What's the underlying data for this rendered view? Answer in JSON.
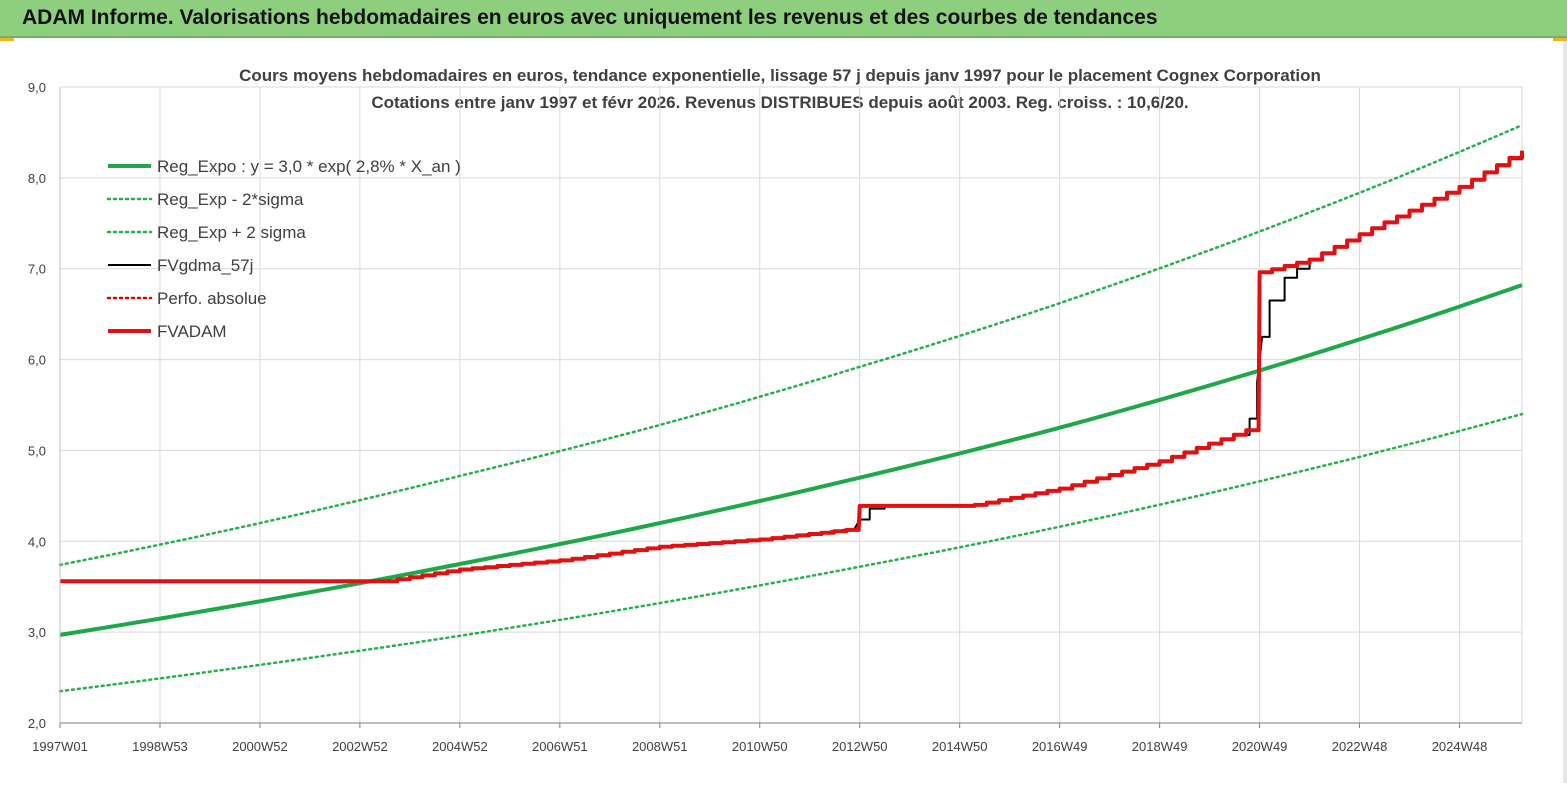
{
  "header": {
    "title": "ADAM Informe. Valorisations hebdomadaires en euros avec uniquement les revenus et des courbes de tendances"
  },
  "colors": {
    "header_bg": "#8dcf7f",
    "reg_expo": "#1fa84a",
    "reg_band": "#25b04c",
    "fvgdma": "#000000",
    "perfo": "#e00000",
    "fvadam": "#e21010",
    "grid": "#d9d9d9"
  },
  "chart_data": {
    "type": "line",
    "title": "Cours moyens hebdomadaires en euros, tendance exponentielle, lissage 57 j depuis janv 1997 pour le placement Cognex Corporation",
    "subtitle": "Cotations entre janv 1997 et févr 2026. Revenus DISTRIBUES depuis août 2003. Reg. croiss. : 10,6/20.",
    "xlabel": "",
    "ylabel": "",
    "ylim": [
      2.0,
      9.0
    ],
    "xlim": [
      1997.0,
      2026.25
    ],
    "y_ticks": [
      "2,0",
      "3,0",
      "4,0",
      "5,0",
      "6,0",
      "7,0",
      "8,0",
      "9,0"
    ],
    "x_ticks": [
      {
        "label": "1997W01",
        "x": 1997.0
      },
      {
        "label": "1998W53",
        "x": 1999.0
      },
      {
        "label": "2000W52",
        "x": 2001.0
      },
      {
        "label": "2002W52",
        "x": 2003.0
      },
      {
        "label": "2004W52",
        "x": 2005.0
      },
      {
        "label": "2006W51",
        "x": 2007.0
      },
      {
        "label": "2008W51",
        "x": 2009.0
      },
      {
        "label": "2010W50",
        "x": 2011.0
      },
      {
        "label": "2012W50",
        "x": 2013.0
      },
      {
        "label": "2014W50",
        "x": 2015.0
      },
      {
        "label": "2016W49",
        "x": 2017.0
      },
      {
        "label": "2018W49",
        "x": 2019.0
      },
      {
        "label": "2020W49",
        "x": 2021.0
      },
      {
        "label": "2022W48",
        "x": 2023.0
      },
      {
        "label": "2024W48",
        "x": 2025.0
      }
    ],
    "grid": true,
    "legend_position": "top-left",
    "series": [
      {
        "name": "Reg_Expo : y = 3,0 * exp( 2,8% *  X_an )",
        "style": "solid-thick",
        "color": "#1fa84a",
        "x": [
          1997.0,
          2001.0,
          2005.0,
          2009.0,
          2013.0,
          2017.0,
          2021.0,
          2026.25
        ],
        "y": [
          2.97,
          3.34,
          3.75,
          4.2,
          4.7,
          5.25,
          5.88,
          6.82
        ]
      },
      {
        "name": "Reg_Exp - 2*sigma",
        "style": "dotted",
        "color": "#25b04c",
        "x": [
          1997.0,
          2001.0,
          2005.0,
          2009.0,
          2013.0,
          2017.0,
          2021.0,
          2026.25
        ],
        "y": [
          2.35,
          2.64,
          2.96,
          3.32,
          3.72,
          4.16,
          4.66,
          5.4
        ]
      },
      {
        "name": "Reg_Exp + 2 sigma",
        "style": "dotted",
        "color": "#25b04c",
        "x": [
          1997.0,
          2001.0,
          2005.0,
          2009.0,
          2013.0,
          2017.0,
          2021.0,
          2026.25
        ],
        "y": [
          3.74,
          4.2,
          4.72,
          5.28,
          5.92,
          6.62,
          7.41,
          8.58
        ]
      },
      {
        "name": "FVgdma_57j",
        "style": "solid-thin",
        "color": "#000000",
        "x": [
          1997.0,
          2003.5,
          2005.0,
          2007.0,
          2009.0,
          2011.0,
          2012.9,
          2013.0,
          2013.2,
          2013.5,
          2015.0,
          2015.3,
          2017.0,
          2019.0,
          2020.5,
          2020.8,
          2020.95,
          2021.05,
          2021.2,
          2021.5,
          2022.0,
          2023.0,
          2025.0,
          2026.25
        ],
        "y": [
          3.56,
          3.56,
          3.69,
          3.79,
          3.94,
          4.02,
          4.14,
          4.24,
          4.36,
          4.39,
          4.39,
          4.4,
          4.58,
          4.88,
          5.17,
          5.35,
          5.75,
          6.25,
          6.65,
          6.9,
          7.1,
          7.38,
          7.9,
          8.28
        ]
      },
      {
        "name": "Perfo. absolue",
        "style": "dotted",
        "color": "#e00000",
        "x": [],
        "y": []
      },
      {
        "name": "FVADAM",
        "style": "solid-thick",
        "color": "#e21010",
        "x": [
          1997.0,
          2003.5,
          2005.0,
          2007.0,
          2009.0,
          2011.0,
          2012.98,
          2013.0,
          2015.0,
          2015.3,
          2017.0,
          2019.0,
          2020.98,
          2021.0,
          2022.0,
          2023.0,
          2025.0,
          2026.25
        ],
        "y": [
          3.56,
          3.56,
          3.69,
          3.79,
          3.94,
          4.02,
          4.14,
          4.39,
          4.39,
          4.4,
          4.58,
          4.88,
          5.27,
          6.96,
          7.1,
          7.38,
          7.9,
          8.3
        ]
      }
    ]
  }
}
